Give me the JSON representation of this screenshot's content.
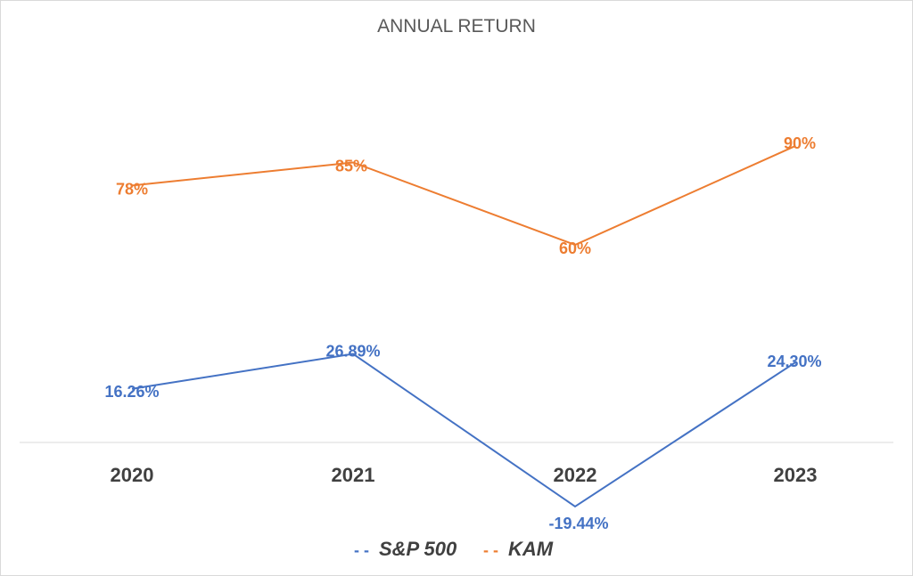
{
  "chart_data": {
    "type": "line",
    "title": "ANNUAL RETURN",
    "categories": [
      "2020",
      "2021",
      "2022",
      "2023"
    ],
    "series": [
      {
        "name": "S&P 500",
        "values": [
          16.26,
          26.89,
          -19.44,
          24.3
        ],
        "labels": [
          "16.26%",
          "26.89%",
          "-19.44%",
          "24.30%"
        ],
        "color": "#4472C4"
      },
      {
        "name": "KAM",
        "values": [
          78,
          85,
          60,
          90
        ],
        "labels": [
          "78%",
          "85%",
          "60%",
          "90%"
        ],
        "color": "#ED7D31"
      }
    ],
    "ylim": [
      -25,
      100
    ],
    "grid": false,
    "legend_position": "bottom",
    "legend_marker": "- -"
  }
}
